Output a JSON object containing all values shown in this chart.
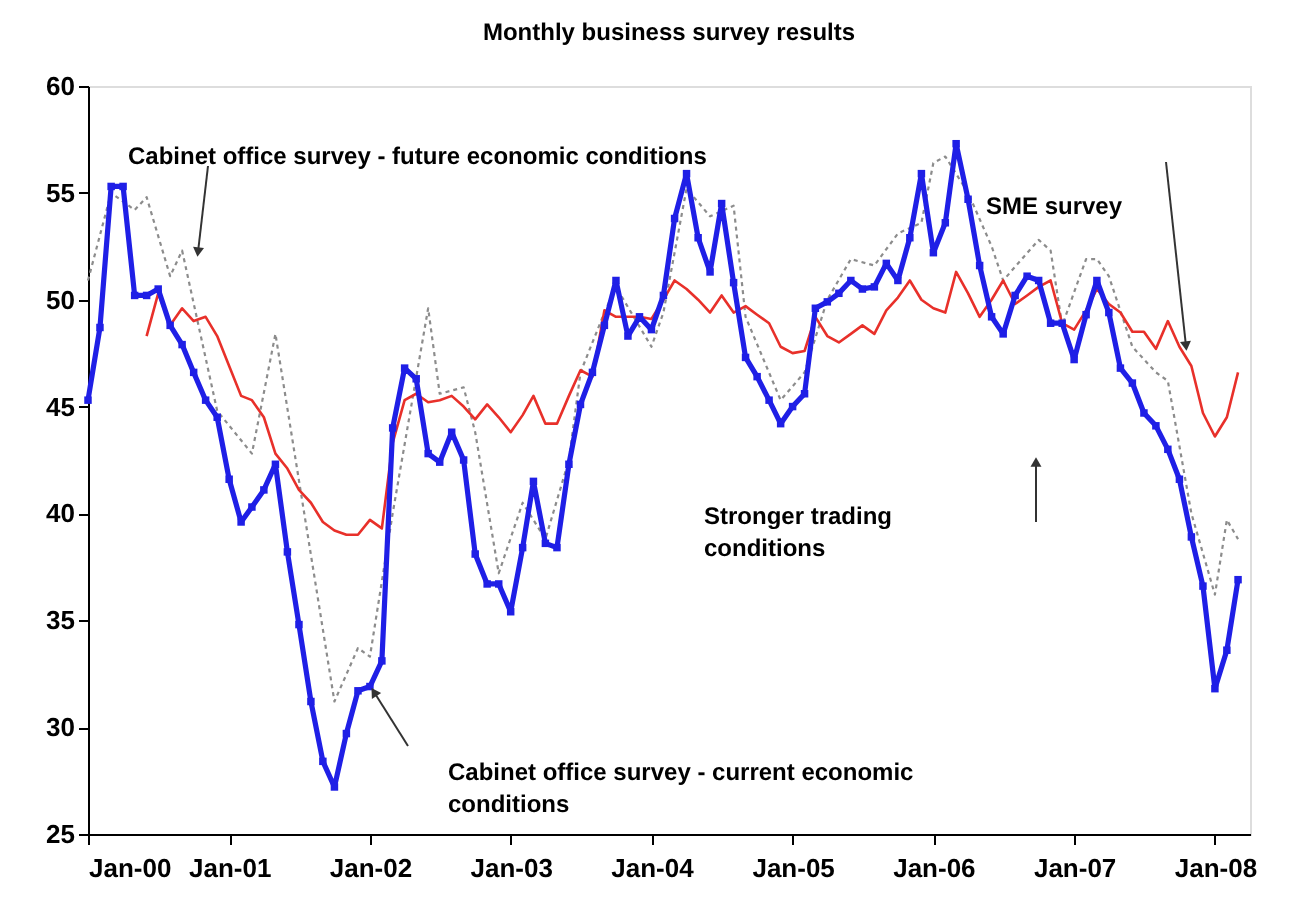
{
  "chart_data": {
    "type": "line",
    "title": "Monthly business survey results",
    "x": [
      "2000-01",
      "2000-02",
      "2000-03",
      "2000-04",
      "2000-05",
      "2000-06",
      "2000-07",
      "2000-08",
      "2000-09",
      "2000-10",
      "2000-11",
      "2000-12",
      "2001-01",
      "2001-02",
      "2001-03",
      "2001-04",
      "2001-05",
      "2001-06",
      "2001-07",
      "2001-08",
      "2001-09",
      "2001-10",
      "2001-11",
      "2001-12",
      "2002-01",
      "2002-02",
      "2002-03",
      "2002-04",
      "2002-05",
      "2002-06",
      "2002-07",
      "2002-08",
      "2002-09",
      "2002-10",
      "2002-11",
      "2002-12",
      "2003-01",
      "2003-02",
      "2003-03",
      "2003-04",
      "2003-05",
      "2003-06",
      "2003-07",
      "2003-08",
      "2003-09",
      "2003-10",
      "2003-11",
      "2003-12",
      "2004-01",
      "2004-02",
      "2004-03",
      "2004-04",
      "2004-05",
      "2004-06",
      "2004-07",
      "2004-08",
      "2004-09",
      "2004-10",
      "2004-11",
      "2004-12",
      "2005-01",
      "2005-02",
      "2005-03",
      "2005-04",
      "2005-05",
      "2005-06",
      "2005-07",
      "2005-08",
      "2005-09",
      "2005-10",
      "2005-11",
      "2005-12",
      "2006-01",
      "2006-02",
      "2006-03",
      "2006-04",
      "2006-05",
      "2006-06",
      "2006-07",
      "2006-08",
      "2006-09",
      "2006-10",
      "2006-11",
      "2006-12",
      "2007-01",
      "2007-02",
      "2007-03",
      "2007-04",
      "2007-05",
      "2007-06",
      "2007-07",
      "2007-08",
      "2007-09",
      "2007-10",
      "2007-11",
      "2007-12",
      "2008-01",
      "2008-02",
      "2008-03"
    ],
    "series": [
      {
        "color": "#8c8c8c",
        "line_style": "dotted",
        "marker": "none",
        "x": [
          "2000-01",
          "2000-03",
          "2000-05",
          "2000-06",
          "2000-08",
          "2000-09",
          "2000-12",
          "2001-03",
          "2001-05",
          "2001-10",
          "2001-12",
          "2002-01",
          "2002-03",
          "2002-06",
          "2002-07",
          "2002-09",
          "2002-10",
          "2002-12",
          "2003-02",
          "2003-04",
          "2003-06",
          "2003-07",
          "2003-09",
          "2003-10",
          "2004-01",
          "2004-02",
          "2004-04",
          "2004-06",
          "2004-08",
          "2004-09",
          "2004-12",
          "2005-02",
          "2005-04",
          "2005-06",
          "2005-08",
          "2005-10",
          "2005-12",
          "2006-01",
          "2006-02",
          "2006-04",
          "2006-06",
          "2006-07",
          "2006-10",
          "2006-11",
          "2006-12",
          "2007-02",
          "2007-03",
          "2007-04",
          "2007-06",
          "2007-08",
          "2007-09",
          "2007-11",
          "2008-01",
          "2008-02",
          "2008-03"
        ],
        "values": [
          50.9,
          55,
          54.2,
          54.8,
          51.1,
          52.3,
          44.8,
          42.8,
          48.4,
          31.2,
          33.7,
          33.3,
          40,
          49.6,
          45.6,
          45.9,
          43.8,
          37.2,
          40.5,
          38.8,
          42.5,
          46.6,
          49.4,
          50.6,
          47.8,
          49.4,
          55.2,
          53.9,
          54.4,
          49.2,
          45.3,
          46.6,
          50,
          51.9,
          51.6,
          53.1,
          53.6,
          56.4,
          56.7,
          55,
          52.5,
          50.9,
          52.8,
          52.3,
          48.8,
          51.9,
          51.9,
          51.1,
          47.8,
          46.6,
          46.2,
          40,
          36.2,
          39.7,
          38.8
        ]
      },
      {
        "color": "#e8302a",
        "line_style": "solid",
        "marker": "none",
        "values": [
          null,
          null,
          null,
          null,
          null,
          48.3,
          50.3,
          48.8,
          49.6,
          49,
          49.2,
          48.3,
          46.9,
          45.5,
          45.3,
          44.5,
          42.8,
          42.1,
          41.1,
          40.5,
          39.6,
          39.2,
          39,
          39,
          39.7,
          39.3,
          43.3,
          45.3,
          45.6,
          45.2,
          45.3,
          45.5,
          45,
          44.4,
          45.1,
          44.5,
          43.8,
          44.6,
          45.5,
          44.2,
          44.2,
          45.5,
          46.7,
          46.4,
          49.5,
          49.2,
          49.2,
          49.2,
          49.1,
          50,
          50.9,
          50.5,
          50,
          49.4,
          50.2,
          49.4,
          49.7,
          49.3,
          48.9,
          47.8,
          47.5,
          47.6,
          49.2,
          48.3,
          48,
          48.4,
          48.8,
          48.4,
          49.5,
          50.1,
          50.9,
          50,
          49.6,
          49.4,
          51.3,
          50.3,
          49.2,
          50,
          50.9,
          49.8,
          50.2,
          50.6,
          50.9,
          48.9,
          48.6,
          49.5,
          50.5,
          49.8,
          49.4,
          48.5,
          48.5,
          47.7,
          49,
          47.8,
          46.9,
          44.7,
          43.6,
          44.5,
          46.6
        ]
      },
      {
        "color": "#1f1fe6",
        "line_style": "solid",
        "marker": "square",
        "values": [
          45.3,
          48.7,
          55.3,
          55.3,
          50.2,
          50.2,
          50.5,
          48.8,
          47.9,
          46.6,
          45.3,
          44.5,
          41.6,
          39.6,
          40.3,
          41.1,
          42.3,
          38.2,
          34.8,
          31.2,
          28.4,
          27.2,
          29.7,
          31.7,
          31.9,
          33.1,
          44,
          46.8,
          46.3,
          42.8,
          42.4,
          43.8,
          42.5,
          38.1,
          36.7,
          36.7,
          35.4,
          38.4,
          41.5,
          38.6,
          38.4,
          42.3,
          45.1,
          46.6,
          48.8,
          50.9,
          48.3,
          49.2,
          48.6,
          50.2,
          53.8,
          55.9,
          52.9,
          51.3,
          54.5,
          50.8,
          47.3,
          46.4,
          45.3,
          44.2,
          45,
          45.6,
          49.6,
          49.9,
          50.3,
          50.9,
          50.5,
          50.6,
          51.7,
          50.9,
          52.9,
          55.9,
          52.2,
          53.6,
          57.3,
          54.7,
          51.6,
          49.2,
          48.4,
          50.2,
          51.1,
          50.9,
          48.9,
          48.9,
          47.2,
          49.3,
          50.9,
          49.4,
          46.8,
          46.1,
          44.7,
          44.1,
          43,
          41.6,
          38.9,
          36.6,
          31.8,
          33.6,
          36.9
        ]
      }
    ],
    "xlim": [
      "2000-01",
      "2008-04"
    ],
    "xticks": [
      {
        "value": "2000-01",
        "label": "Jan-00"
      },
      {
        "value": "2001-01",
        "label": "Jan-01"
      },
      {
        "value": "2002-01",
        "label": "Jan-02"
      },
      {
        "value": "2003-01",
        "label": "Jan-03"
      },
      {
        "value": "2004-01",
        "label": "Jan-04"
      },
      {
        "value": "2005-01",
        "label": "Jan-05"
      },
      {
        "value": "2006-01",
        "label": "Jan-06"
      },
      {
        "value": "2007-01",
        "label": "Jan-07"
      },
      {
        "value": "2008-01",
        "label": "Jan-08"
      }
    ],
    "ylim": [
      25,
      60
    ],
    "yticks": [
      25,
      30,
      35,
      40,
      45,
      50,
      55,
      60
    ],
    "grid": false,
    "annotations": [
      "Cabinet office survey - future economic conditions",
      "Cabinet office survey - current economic conditions",
      "Stronger trading conditions",
      "SME survey"
    ]
  }
}
